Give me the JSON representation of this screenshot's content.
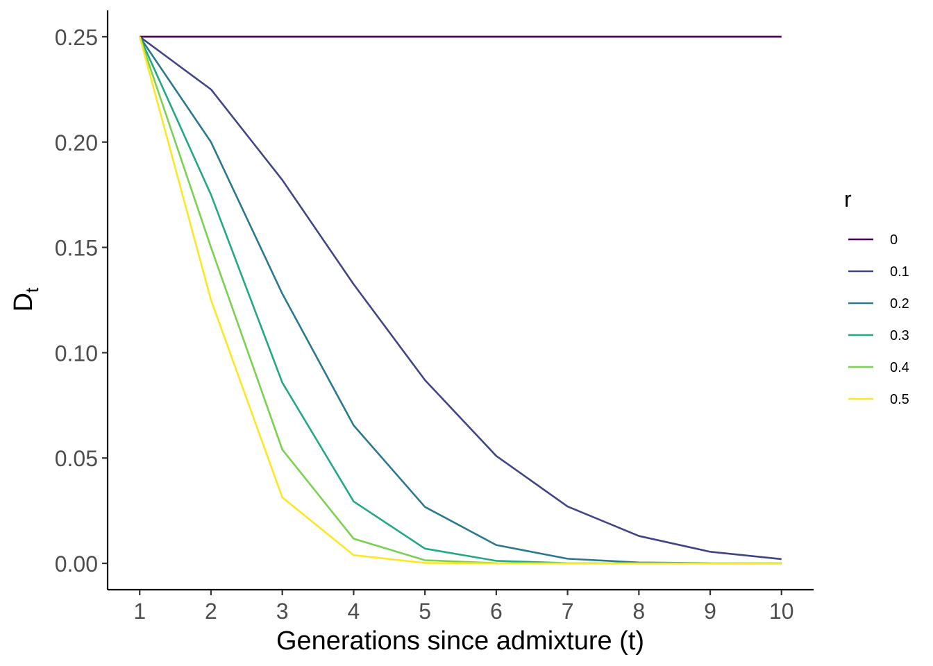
{
  "chart_data": {
    "type": "line",
    "xlabel": "Generations since admixture (t)",
    "ylabel": "D",
    "ylabel_subscript": "t",
    "x": [
      1,
      2,
      3,
      4,
      5,
      6,
      7,
      8,
      9,
      10
    ],
    "xticks": [
      "1",
      "2",
      "3",
      "4",
      "5",
      "6",
      "7",
      "8",
      "9",
      "10"
    ],
    "yticks": [
      "0.00",
      "0.05",
      "0.10",
      "0.15",
      "0.20",
      "0.25"
    ],
    "xlim": [
      0.55,
      10.45
    ],
    "ylim": [
      -0.0125,
      0.2625
    ],
    "grid": false,
    "legend": {
      "title": "r",
      "placement": "right"
    },
    "series": [
      {
        "name": "0",
        "color": "#440154",
        "values": [
          0.25,
          0.25,
          0.25,
          0.25,
          0.25,
          0.25,
          0.25,
          0.25,
          0.25,
          0.25
        ]
      },
      {
        "name": "0.1",
        "color": "#414487",
        "values": [
          0.25,
          0.225,
          0.182,
          0.1325,
          0.087,
          0.051,
          0.027,
          0.013,
          0.0055,
          0.002
        ]
      },
      {
        "name": "0.2",
        "color": "#2A788E",
        "values": [
          0.25,
          0.2,
          0.128,
          0.0655,
          0.0268,
          0.0087,
          0.0022,
          0.0004,
          0.0001,
          0.0
        ]
      },
      {
        "name": "0.3",
        "color": "#22A884",
        "values": [
          0.25,
          0.175,
          0.0858,
          0.0294,
          0.007,
          0.0012,
          0.0001,
          0.0,
          0.0,
          0.0
        ]
      },
      {
        "name": "0.4",
        "color": "#7AD151",
        "values": [
          0.25,
          0.15,
          0.054,
          0.0117,
          0.0015,
          0.0001,
          0.0,
          0.0,
          0.0,
          0.0
        ]
      },
      {
        "name": "0.5",
        "color": "#FDE725",
        "values": [
          0.25,
          0.125,
          0.0313,
          0.0039,
          0.0002,
          0.0,
          0.0,
          0.0,
          0.0,
          0.0
        ]
      }
    ]
  }
}
